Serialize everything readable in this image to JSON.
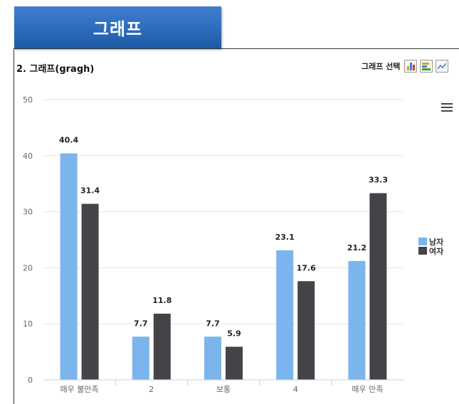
{
  "tab": {
    "title": "그래프"
  },
  "section": {
    "title": "2. 그래프(gragh)"
  },
  "graph_select": {
    "label": "그래프 선택"
  },
  "colors": {
    "male": "#7cb5ec",
    "female": "#434348"
  },
  "icons": {
    "menu": "hamburger-menu-icon",
    "bar": "bar-chart-icon",
    "horizontal_bar": "horizontal-bar-chart-icon",
    "line": "line-chart-icon"
  },
  "chart_data": {
    "type": "bar",
    "categories": [
      "매우 불만족",
      "2",
      "보통",
      "4",
      "매우 만족"
    ],
    "series": [
      {
        "name": "남자",
        "values": [
          40.4,
          7.7,
          7.7,
          23.1,
          21.2
        ]
      },
      {
        "name": "여자",
        "values": [
          31.4,
          11.8,
          5.9,
          17.6,
          33.3
        ]
      }
    ],
    "ylim": [
      0,
      50
    ],
    "yticks": [
      0,
      10,
      20,
      30,
      40,
      50
    ],
    "grid": true,
    "legend": "right",
    "data_labels": true
  }
}
